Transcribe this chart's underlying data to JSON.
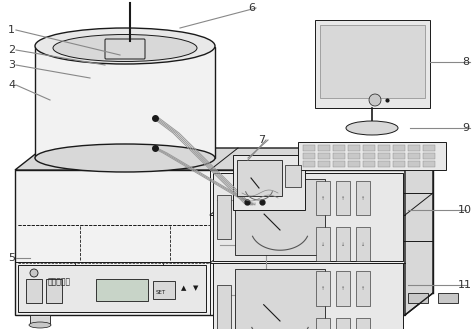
{
  "bg_color": "#ffffff",
  "lc": "#1a1a1a",
  "gray1": "#f2f2f2",
  "gray2": "#e8e8e8",
  "gray3": "#d8d8d8",
  "gray4": "#c8c8c8",
  "gray5": "#b0b0b0",
  "label_line_color": "#888888",
  "label_fontsize": 8,
  "label_color": "#333333"
}
